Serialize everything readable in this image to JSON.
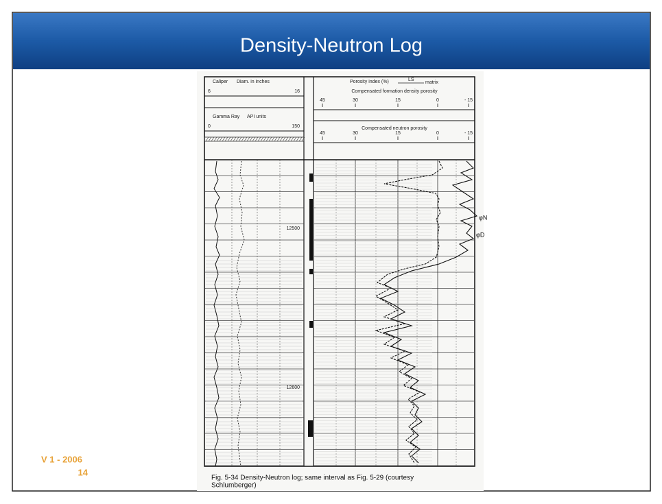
{
  "header": {
    "title": "Density-Neutron Log"
  },
  "footer": {
    "version": "V 1 - 2006",
    "page": "14"
  },
  "figure": {
    "caliper": {
      "label": "Caliper",
      "units": "Diam. in inches",
      "scale": [
        "6",
        "16"
      ]
    },
    "gamma_ray": {
      "label": "Gamma Ray",
      "units": "API units",
      "scale": [
        "0",
        "150"
      ]
    },
    "porosity": {
      "label": "Porosity index (%)",
      "matrix_value": "LS",
      "matrix": "matrix"
    },
    "density": {
      "label": "Compensated formation density porosity",
      "scale": [
        "45",
        "30",
        "15",
        "0",
        "- 15"
      ]
    },
    "neutron": {
      "label": "Compensated neutron porosity",
      "scale": [
        "45",
        "30",
        "15",
        "0",
        "- 15"
      ]
    },
    "depths": [
      "12500",
      "12600"
    ],
    "curve_labels": [
      "φN",
      "φD"
    ],
    "caption": [
      "Fig. 5-34 Density-Neutron log; same interval as Fig. 5-29 (courtesy",
      "Schlumberger)"
    ]
  }
}
